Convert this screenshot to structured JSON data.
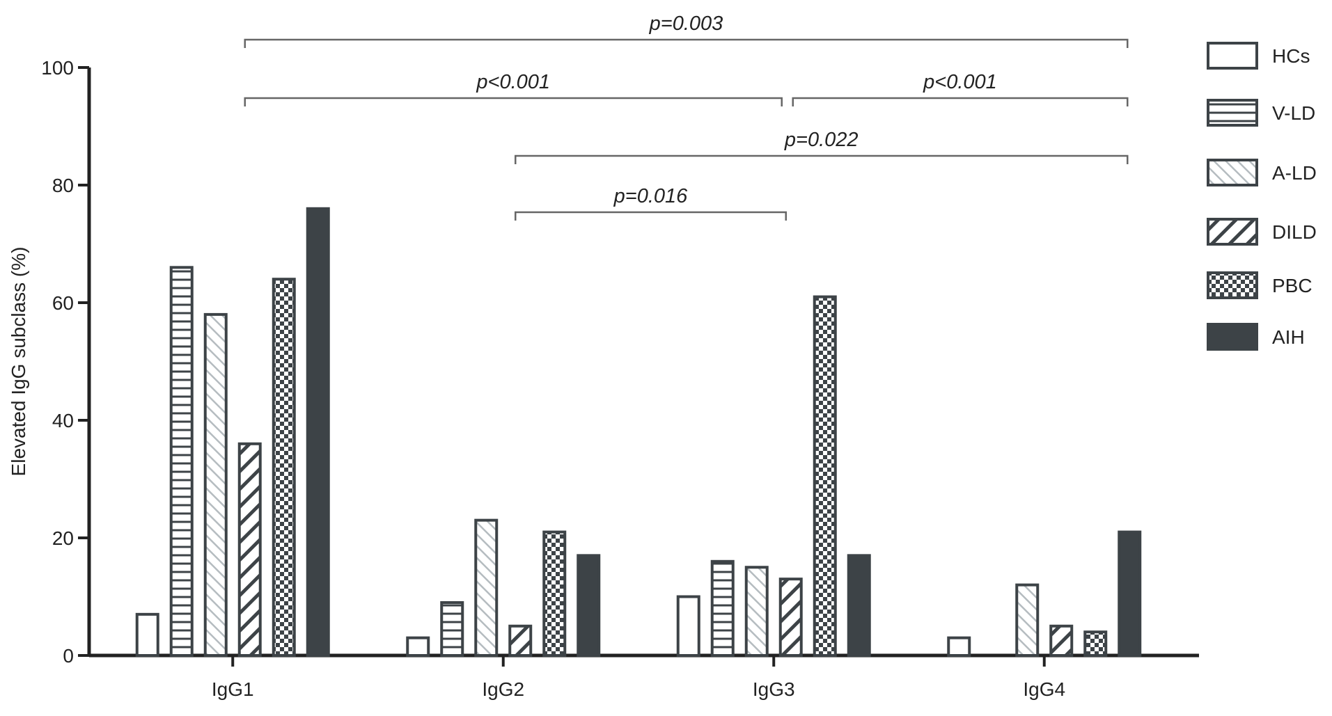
{
  "chart_data": {
    "type": "bar",
    "title": "",
    "xlabel": "",
    "ylabel": "Elevated IgG subclass (%)",
    "ylim": [
      0,
      100
    ],
    "yticks": [
      "0",
      "20",
      "40",
      "60",
      "80",
      "100"
    ],
    "categories": [
      "IgG1",
      "IgG2",
      "IgG3",
      "IgG4"
    ],
    "legend_position": "right",
    "series": [
      {
        "name": "HCs",
        "pattern": "hollow",
        "values": [
          7,
          3,
          10,
          3
        ]
      },
      {
        "name": "V-LD",
        "pattern": "horizontal",
        "values": [
          66,
          9,
          16,
          0
        ]
      },
      {
        "name": "A-LD",
        "pattern": "diagonal-light",
        "values": [
          58,
          23,
          15,
          12
        ]
      },
      {
        "name": "DILD",
        "pattern": "diagonal-dark",
        "values": [
          36,
          5,
          13,
          5
        ]
      },
      {
        "name": "PBC",
        "pattern": "checker",
        "values": [
          64,
          21,
          61,
          4
        ]
      },
      {
        "name": "AIH",
        "pattern": "solid",
        "values": [
          76,
          17,
          17,
          21
        ]
      }
    ],
    "annotations": [
      {
        "text": "p=0.003",
        "from": "IgG1",
        "to": "IgG4"
      },
      {
        "text": "p<0.001",
        "from": "IgG1",
        "to": "IgG3"
      },
      {
        "text": "p<0.001",
        "from": "IgG3",
        "to": "IgG4"
      },
      {
        "text": "p=0.022",
        "from": "IgG2",
        "to": "IgG4"
      },
      {
        "text": "p=0.016",
        "from": "IgG2",
        "to": "IgG3"
      }
    ],
    "colors": {
      "stroke": "#3d4347",
      "fill_dark": "#3d4347",
      "fill_light": "#b5bcc0",
      "background": "#ffffff"
    }
  }
}
